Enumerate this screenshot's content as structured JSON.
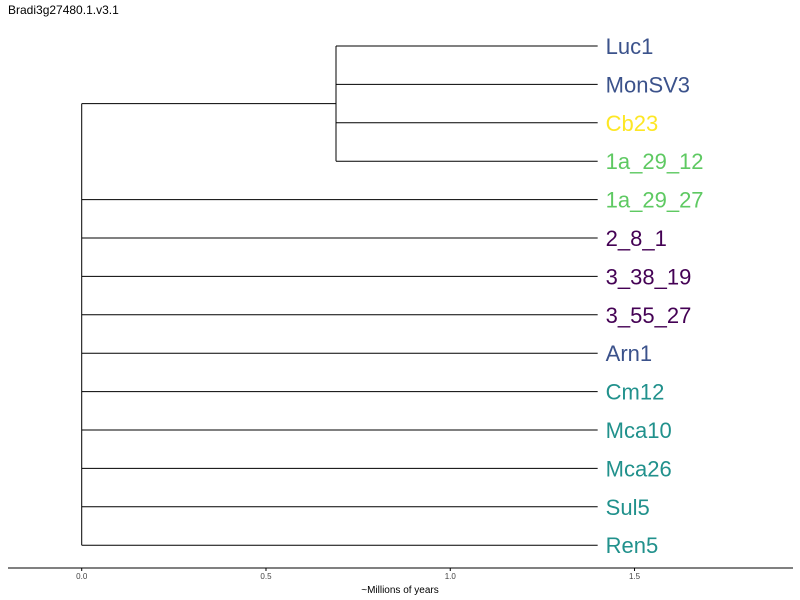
{
  "title": "Bradi3g27480.1.v3.1",
  "colors": {
    "branch": "#000000",
    "dark_purple": "#440154",
    "slate_blue": "#3b528b",
    "teal": "#21918c",
    "green": "#5ec962",
    "yellow": "#fde725"
  },
  "axis": {
    "label": "~Millions of years",
    "range": [
      -0.2,
      1.93
    ],
    "ticks": [
      {
        "value": 0.0,
        "label": "0.0"
      },
      {
        "value": 0.5,
        "label": "0.5"
      },
      {
        "value": 1.0,
        "label": "1.0"
      },
      {
        "value": 1.5,
        "label": "1.5"
      }
    ]
  },
  "tree": {
    "root_x": 0.0,
    "subclade_x": 0.69,
    "tip_x": 1.4,
    "leaves": [
      {
        "name": "Luc1",
        "color": "#3b528b"
      },
      {
        "name": "MonSV3",
        "color": "#3b528b"
      },
      {
        "name": "Cb23",
        "color": "#fde725"
      },
      {
        "name": "1a_29_12",
        "color": "#5ec962"
      },
      {
        "name": "1a_29_27",
        "color": "#5ec962"
      },
      {
        "name": "2_8_1",
        "color": "#440154"
      },
      {
        "name": "3_38_19",
        "color": "#440154"
      },
      {
        "name": "3_55_27",
        "color": "#440154"
      },
      {
        "name": "Arn1",
        "color": "#3b528b"
      },
      {
        "name": "Cm12",
        "color": "#21918c"
      },
      {
        "name": "Mca10",
        "color": "#21918c"
      },
      {
        "name": "Mca26",
        "color": "#21918c"
      },
      {
        "name": "Sul5",
        "color": "#21918c"
      },
      {
        "name": "Ren5",
        "color": "#21918c"
      }
    ],
    "subclade_leaf_count": 4
  }
}
